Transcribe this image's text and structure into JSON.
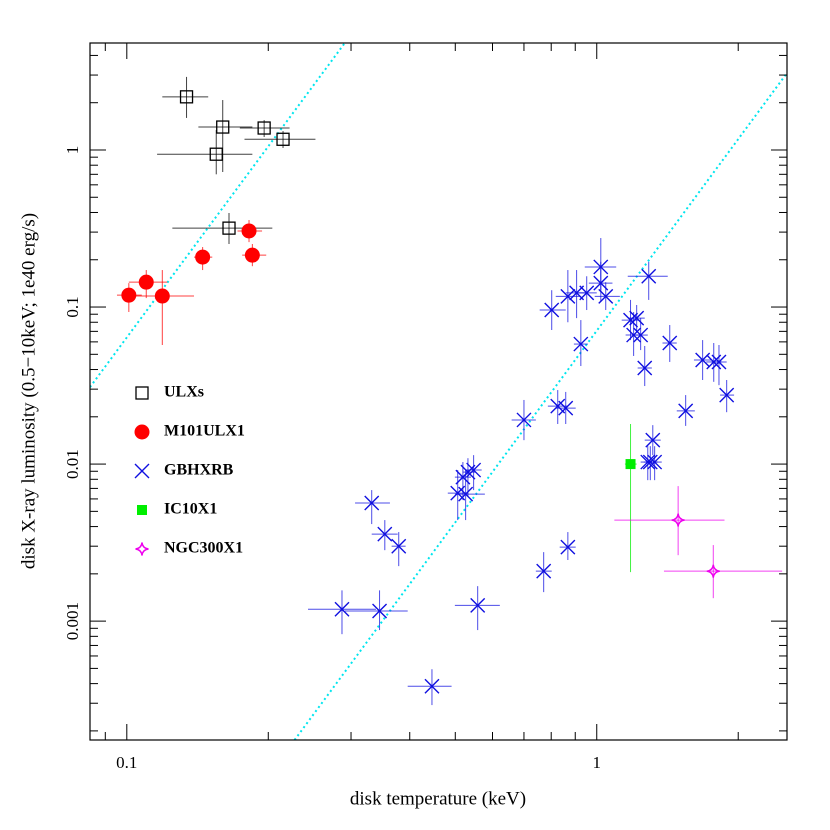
{
  "chart_data": {
    "type": "scatter",
    "x_label": "disk temperature (keV)",
    "y_label": "disk X-ray luminosity (0.5−10keV; 1e40 erg/s)",
    "xscale": "log",
    "yscale": "log",
    "xlim": [
      0.0835,
      2.54
    ],
    "ylim": [
      0.000175,
      4.8
    ],
    "xticks": [
      0.1,
      1
    ],
    "yticks": [
      0.001,
      0.01,
      0.1,
      1
    ],
    "legend": "lower left",
    "model_lines": [
      {
        "color": "#00e5ee",
        "x": [
          0.0835,
          0.291
        ],
        "y": [
          0.0309,
          4.8
        ]
      },
      {
        "color": "#00e5ee",
        "x": [
          0.2275,
          2.54
        ],
        "y": [
          0.000175,
          3.09
        ]
      }
    ],
    "series": [
      {
        "name": "ULXs",
        "color": "#000000",
        "marker": "open-square",
        "x": [
          0.134,
          0.16,
          0.196,
          0.215,
          0.155,
          0.165
        ],
        "y": [
          2.18,
          1.4,
          1.38,
          1.17,
          0.94,
          0.318
        ],
        "xmin": [
          0.119,
          0.142,
          0.174,
          0.178,
          0.116,
          0.125
        ],
        "xmax": [
          0.149,
          0.185,
          0.222,
          0.252,
          0.185,
          0.204
        ],
        "ymin": [
          1.6,
          0.724,
          1.21,
          1.03,
          0.7,
          0.252
        ],
        "ymax": [
          2.92,
          2.08,
          1.55,
          1.32,
          1.34,
          0.397
        ]
      },
      {
        "name": "M101ULX1",
        "color": "#ff0000",
        "marker": "filled-circle",
        "x": [
          0.101,
          0.11,
          0.119,
          0.145,
          0.182,
          0.185
        ],
        "y": [
          0.119,
          0.144,
          0.1175,
          0.208,
          0.305,
          0.214
        ],
        "xmin": [
          0.0953,
          0.101,
          0.1005,
          0.139,
          0.172,
          0.176
        ],
        "xmax": [
          0.1076,
          0.122,
          0.139,
          0.152,
          0.194,
          0.198
        ],
        "ymin": [
          0.093,
          0.114,
          0.0573,
          0.172,
          0.259,
          0.182
        ],
        "ymax": [
          0.142,
          0.172,
          0.172,
          0.241,
          0.358,
          0.252
        ]
      },
      {
        "name": "GBHXRB",
        "color": "#1010e0",
        "marker": "cross",
        "x": [
          1.02,
          1.02,
          1.045,
          0.868,
          0.906,
          0.952,
          0.802,
          0.925,
          1.29,
          1.18,
          1.216,
          1.198,
          1.24,
          1.265,
          1.43,
          1.68,
          1.774,
          1.82,
          1.89,
          1.546,
          0.7,
          0.826,
          0.859,
          1.316,
          1.284,
          1.3,
          1.328,
          0.332,
          0.354,
          0.379,
          0.506,
          0.519,
          0.532,
          0.547,
          0.526,
          0.771,
          0.868,
          0.287,
          0.345,
          0.558,
          0.446
        ],
        "y": [
          0.18,
          0.142,
          0.117,
          0.117,
          0.123,
          0.123,
          0.0957,
          0.0581,
          0.157,
          0.0826,
          0.085,
          0.0663,
          0.0663,
          0.0409,
          0.059,
          0.046,
          0.0447,
          0.0447,
          0.0275,
          0.0218,
          0.0191,
          0.0234,
          0.0227,
          0.0142,
          0.0103,
          0.0103,
          0.0103,
          0.00565,
          0.00358,
          0.003,
          0.00653,
          0.00826,
          0.00889,
          0.00916,
          0.00644,
          0.00208,
          0.00296,
          0.00119,
          0.00116,
          0.00126,
          0.000385
        ],
        "xmin": [
          0.943,
          0.962,
          0.99,
          0.818,
          0.859,
          0.906,
          0.756,
          0.894,
          1.164,
          1.13,
          1.17,
          1.152,
          1.198,
          1.222,
          1.38,
          1.61,
          1.71,
          1.75,
          1.83,
          1.48,
          0.659,
          0.787,
          0.818,
          1.265,
          1.24,
          1.259,
          1.284,
          0.306,
          0.332,
          0.366,
          0.482,
          0.499,
          0.519,
          0.526,
          0.499,
          0.742,
          0.834,
          0.243,
          0.291,
          0.499,
          0.396
        ],
        "xmax": [
          1.1,
          1.08,
          1.12,
          0.92,
          0.957,
          1.0,
          0.859,
          0.957,
          1.416,
          1.235,
          1.265,
          1.246,
          1.284,
          1.31,
          1.48,
          1.76,
          1.845,
          1.89,
          1.96,
          1.617,
          0.742,
          0.868,
          0.902,
          1.368,
          1.328,
          1.348,
          1.375,
          0.363,
          0.377,
          0.392,
          0.532,
          0.54,
          0.553,
          0.569,
          0.578,
          0.802,
          0.902,
          0.339,
          0.396,
          0.622,
          0.491
        ],
        "ymin": [
          0.128,
          0.108,
          0.0957,
          0.08,
          0.085,
          0.0957,
          0.0714,
          0.0421,
          0.111,
          0.0616,
          0.0693,
          0.0488,
          0.0532,
          0.0314,
          0.0447,
          0.0343,
          0.0334,
          0.0318,
          0.0214,
          0.0175,
          0.0142,
          0.018,
          0.018,
          0.0114,
          0.0079,
          0.0079,
          0.0079,
          0.00415,
          0.00283,
          0.00224,
          0.0044,
          0.0059,
          0.00625,
          0.00683,
          0.0044,
          0.00153,
          0.00245,
          0.000826,
          0.000877,
          0.000877,
          0.000292
        ],
        "ymax": [
          0.275,
          0.194,
          0.144,
          0.172,
          0.172,
          0.157,
          0.128,
          0.0826,
          0.194,
          0.111,
          0.103,
          0.0929,
          0.085,
          0.0565,
          0.0768,
          0.0616,
          0.059,
          0.0573,
          0.0343,
          0.0275,
          0.0256,
          0.0296,
          0.0288,
          0.0177,
          0.013,
          0.013,
          0.013,
          0.00683,
          0.0044,
          0.00369,
          0.00916,
          0.0103,
          0.0109,
          0.0114,
          0.00916,
          0.00275,
          0.00369,
          0.00157,
          0.00157,
          0.00167,
          0.000494
        ]
      },
      {
        "name": "IC10X1",
        "color": "#00ee00",
        "marker": "filled-square",
        "x": [
          1.18
        ],
        "y": [
          0.01
        ],
        "xmin": [
          1.148
        ],
        "xmax": [
          1.216
        ],
        "ymin": [
          0.00205
        ],
        "ymax": [
          0.018
        ]
      },
      {
        "name": "NGC300X1",
        "color": "#ee00ee",
        "marker": "star",
        "x": [
          1.49,
          1.77
        ],
        "y": [
          0.0044,
          0.00208
        ],
        "xmin": [
          1.09,
          1.39
        ],
        "xmax": [
          1.87,
          2.48
        ],
        "ymin": [
          0.00263,
          0.0014
        ],
        "ymax": [
          0.00724,
          0.00305
        ]
      }
    ]
  }
}
